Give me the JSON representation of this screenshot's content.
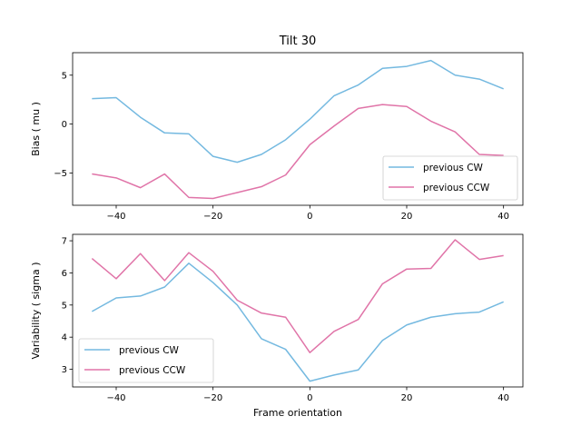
{
  "figure": {
    "title": "Tilt 30"
  },
  "colors": {
    "cw": "#74b9e0",
    "ccw": "#e074a8"
  },
  "chart_data": [
    {
      "type": "line",
      "title": "Tilt 30",
      "xlabel": "",
      "ylabel": "Bias ( mu )",
      "xlim": [
        -49,
        44
      ],
      "ylim": [
        -8.3,
        7.3
      ],
      "xticks": [
        -40,
        -20,
        0,
        20,
        40
      ],
      "xtick_labels": [
        "−40",
        "−20",
        "0",
        "20",
        "40"
      ],
      "yticks": [
        -5,
        0,
        5
      ],
      "ytick_labels": [
        "−5",
        "0",
        "5"
      ],
      "legend_position": "lower-right",
      "x": [
        -45,
        -40,
        -35,
        -30,
        -25,
        -20,
        -15,
        -10,
        -5,
        0,
        5,
        10,
        15,
        20,
        25,
        30,
        35,
        40
      ],
      "series": [
        {
          "name": "previous CW",
          "color_key": "cw",
          "values": [
            2.6,
            2.7,
            0.7,
            -0.9,
            -1.0,
            -3.3,
            -3.9,
            -3.1,
            -1.6,
            0.5,
            2.9,
            4.0,
            5.7,
            5.9,
            6.5,
            5.0,
            4.6,
            3.6
          ]
        },
        {
          "name": "previous CCW",
          "color_key": "ccw",
          "values": [
            -5.1,
            -5.5,
            -6.5,
            -5.1,
            -7.5,
            -7.6,
            -7.0,
            -6.4,
            -5.2,
            -2.1,
            -0.2,
            1.6,
            2.0,
            1.8,
            0.3,
            -0.8,
            -3.1,
            -3.2
          ]
        }
      ]
    },
    {
      "type": "line",
      "title": "",
      "xlabel": "Frame orientation",
      "ylabel": "Variability ( sigma )",
      "xlim": [
        -49,
        44
      ],
      "ylim": [
        2.45,
        7.2
      ],
      "xticks": [
        -40,
        -20,
        0,
        20,
        40
      ],
      "xtick_labels": [
        "−40",
        "−20",
        "0",
        "20",
        "40"
      ],
      "yticks": [
        3,
        4,
        5,
        6,
        7
      ],
      "ytick_labels": [
        "3",
        "4",
        "5",
        "6",
        "7"
      ],
      "legend_position": "lower-left",
      "x": [
        -45,
        -40,
        -35,
        -30,
        -25,
        -20,
        -15,
        -10,
        -5,
        0,
        5,
        10,
        15,
        20,
        25,
        30,
        35,
        40
      ],
      "series": [
        {
          "name": "previous CW",
          "color_key": "cw",
          "values": [
            4.8,
            5.22,
            5.28,
            5.56,
            6.3,
            5.7,
            5.0,
            3.95,
            3.62,
            2.63,
            2.82,
            2.98,
            3.9,
            4.38,
            4.62,
            4.73,
            4.78,
            5.1
          ]
        },
        {
          "name": "previous CCW",
          "color_key": "ccw",
          "values": [
            6.45,
            5.82,
            6.6,
            5.76,
            6.63,
            6.05,
            5.15,
            4.75,
            4.62,
            3.52,
            4.18,
            4.55,
            5.66,
            6.12,
            6.14,
            7.03,
            6.42,
            6.54
          ]
        }
      ]
    }
  ]
}
